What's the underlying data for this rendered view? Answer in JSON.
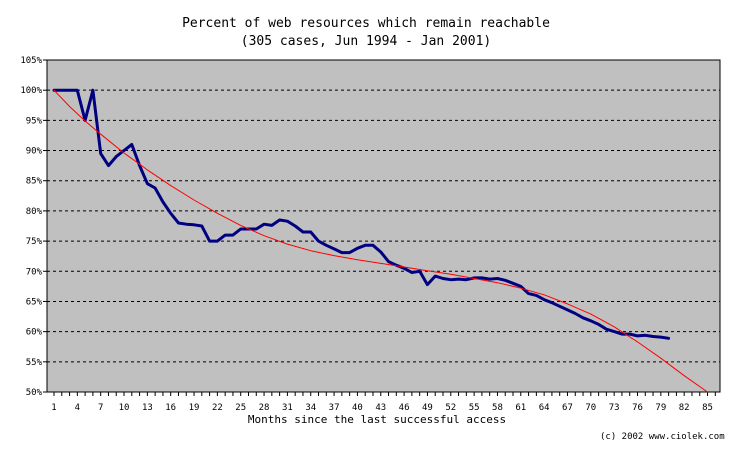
{
  "chart_data": {
    "type": "line",
    "title": "Percent of web resources which remain reachable",
    "subtitle": "(305 cases, Jun 1994 - Jan 2001)",
    "xlabel": "Months since the last successful access",
    "ylabel": "",
    "credit": "(c) 2002 www.ciolek.com",
    "xlim": [
      1,
      86
    ],
    "ylim": [
      50,
      105
    ],
    "x_ticks": [
      1,
      4,
      7,
      10,
      13,
      16,
      19,
      22,
      25,
      28,
      31,
      34,
      37,
      40,
      43,
      46,
      49,
      52,
      55,
      58,
      61,
      64,
      67,
      70,
      73,
      76,
      79,
      82,
      85
    ],
    "y_ticks": [
      50,
      55,
      60,
      65,
      70,
      75,
      80,
      85,
      90,
      95,
      100,
      105
    ],
    "y_tick_labels": [
      "50%",
      "55%",
      "60%",
      "65%",
      "70%",
      "75%",
      "80%",
      "85%",
      "90%",
      "95%",
      "100%",
      "105%"
    ],
    "grid": "horizontal dashed",
    "plot_background": "#c0c0c0",
    "legend": "none",
    "series": [
      {
        "color": "#000080",
        "x": [
          1,
          2,
          3,
          4,
          5,
          6,
          7,
          8,
          9,
          10,
          11,
          12,
          13,
          14,
          15,
          16,
          17,
          18,
          19,
          20,
          21,
          22,
          23,
          24,
          25,
          26,
          27,
          28,
          29,
          30,
          31,
          32,
          33,
          34,
          35,
          36,
          37,
          38,
          39,
          40,
          41,
          42,
          43,
          44,
          45,
          46,
          47,
          48,
          49,
          50,
          51,
          52,
          53,
          54,
          55,
          56,
          57,
          58,
          59,
          60,
          61,
          62,
          63,
          64,
          65,
          66,
          67,
          68,
          69,
          70,
          71,
          72,
          73,
          74,
          75,
          76,
          77,
          78,
          79,
          80
        ],
        "values": [
          100,
          100,
          100,
          100,
          95,
          100,
          89.5,
          87.5,
          89,
          90,
          91,
          87.5,
          84.5,
          83.8,
          81.5,
          79.6,
          78,
          77.8,
          77.7,
          77.5,
          75,
          75,
          76,
          76,
          77,
          77,
          77,
          77.8,
          77.6,
          78.5,
          78.3,
          77.5,
          76.5,
          76.5,
          75,
          74.3,
          73.7,
          73.1,
          73.1,
          73.8,
          74.3,
          74.3,
          73.2,
          71.6,
          71,
          70.5,
          69.8,
          70,
          67.8,
          69.2,
          68.8,
          68.6,
          68.7,
          68.6,
          68.9,
          68.9,
          68.7,
          68.8,
          68.5,
          68,
          67.5,
          66.3,
          66,
          65.3,
          64.8,
          64.2,
          63.6,
          63,
          62.3,
          61.8,
          61.2,
          60.4,
          60,
          59.6,
          59.6,
          59.3,
          59.4,
          59.2,
          59.1,
          58.9
        ]
      },
      {
        "color": "#ff0000",
        "x": [
          1,
          3,
          5,
          7,
          10,
          13,
          16,
          19,
          22,
          25,
          28,
          31,
          34,
          37,
          40,
          43,
          46,
          49,
          52,
          55,
          58,
          61,
          64,
          67,
          70,
          73,
          76,
          79,
          82,
          85
        ],
        "values": [
          100,
          97.3,
          94.9,
          92.7,
          89.6,
          86.8,
          84.2,
          81.8,
          79.6,
          77.6,
          75.9,
          74.5,
          73.4,
          72.6,
          71.9,
          71.3,
          70.7,
          70.1,
          69.5,
          68.8,
          68.1,
          67.2,
          66.1,
          64.6,
          62.9,
          60.8,
          58.3,
          55.6,
          52.7,
          50
        ]
      }
    ]
  }
}
